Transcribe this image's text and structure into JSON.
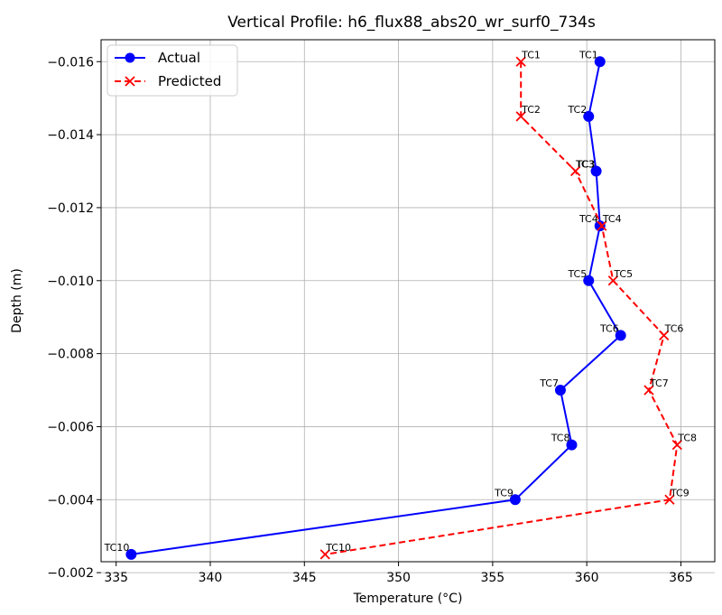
{
  "chart_data": {
    "type": "line",
    "title": "Vertical Profile: h6_flux88_abs20_wr_surf0_734s",
    "xlabel": "Temperature (°C)",
    "ylabel": "Depth (m)",
    "xlim": [
      334.2,
      366.8
    ],
    "ylim": [
      -0.0023,
      -0.0166
    ],
    "y_inverted": true,
    "grid": true,
    "legend_position": "upper-left",
    "xticks": [
      335,
      340,
      345,
      350,
      355,
      360,
      365
    ],
    "xtick_labels": [
      "335",
      "340",
      "345",
      "350",
      "355",
      "360",
      "365"
    ],
    "yticks": [
      -0.016,
      -0.014,
      -0.012,
      -0.01,
      -0.008,
      -0.006,
      -0.004,
      -0.002
    ],
    "ytick_labels": [
      "−0.016",
      "−0.014",
      "−0.012",
      "−0.010",
      "−0.008",
      "−0.006",
      "−0.004",
      "−0.002"
    ],
    "series": [
      {
        "name": "Actual",
        "color": "#0000ff",
        "marker": "circle",
        "linestyle": "solid",
        "points": [
          {
            "label": "TC1",
            "x": 360.7,
            "y": -0.016
          },
          {
            "label": "TC2",
            "x": 360.1,
            "y": -0.0145
          },
          {
            "label": "TC3",
            "x": 360.5,
            "y": -0.013
          },
          {
            "label": "TC4",
            "x": 360.7,
            "y": -0.0115
          },
          {
            "label": "TC5",
            "x": 360.1,
            "y": -0.01
          },
          {
            "label": "TC6",
            "x": 361.8,
            "y": -0.0085
          },
          {
            "label": "TC7",
            "x": 358.6,
            "y": -0.007
          },
          {
            "label": "TC8",
            "x": 359.2,
            "y": -0.0055
          },
          {
            "label": "TC9",
            "x": 356.2,
            "y": -0.004
          },
          {
            "label": "TC10",
            "x": 335.8,
            "y": -0.0025
          }
        ]
      },
      {
        "name": "Predicted",
        "color": "#ff0000",
        "marker": "x",
        "linestyle": "dashed",
        "points": [
          {
            "label": "TC1",
            "x": 356.5,
            "y": -0.016
          },
          {
            "label": "TC2",
            "x": 356.5,
            "y": -0.0145
          },
          {
            "label": "TC3",
            "x": 359.4,
            "y": -0.013
          },
          {
            "label": "TC4",
            "x": 360.8,
            "y": -0.0115
          },
          {
            "label": "TC5",
            "x": 361.4,
            "y": -0.01
          },
          {
            "label": "TC6",
            "x": 364.1,
            "y": -0.0085
          },
          {
            "label": "TC7",
            "x": 363.3,
            "y": -0.007
          },
          {
            "label": "TC8",
            "x": 364.8,
            "y": -0.0055
          },
          {
            "label": "TC9",
            "x": 364.4,
            "y": -0.004
          },
          {
            "label": "TC10",
            "x": 346.1,
            "y": -0.0025
          }
        ]
      }
    ]
  }
}
